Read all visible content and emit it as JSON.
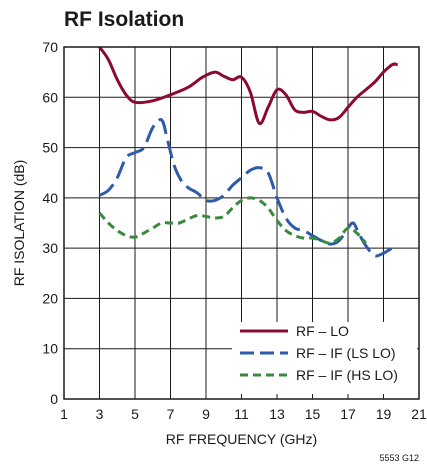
{
  "chart_data": {
    "type": "line",
    "title": "RF Isolation",
    "xlabel": "RF FREQUENCY (GHz)",
    "ylabel": "RF ISOLATION (dB)",
    "xlim": [
      1,
      21
    ],
    "ylim": [
      0,
      70
    ],
    "xticks": [
      1,
      3,
      5,
      7,
      9,
      11,
      13,
      15,
      17,
      19,
      21
    ],
    "yticks": [
      0,
      10,
      20,
      30,
      40,
      50,
      60,
      70
    ],
    "grid": true,
    "legend_position": "bottom-right",
    "series": [
      {
        "name": "RF – LO",
        "color": "#8b0b2f",
        "dash": "solid",
        "x": [
          3.0,
          3.5,
          4.0,
          4.5,
          5.0,
          6.0,
          7.0,
          8.0,
          8.8,
          9.5,
          10.0,
          10.5,
          11.0,
          11.5,
          12.0,
          12.5,
          13.0,
          13.5,
          14.0,
          14.5,
          15.0,
          15.5,
          16.0,
          16.5,
          17.0,
          17.5,
          18.0,
          18.5,
          19.0,
          19.5,
          19.8
        ],
        "y": [
          70.0,
          67.5,
          63.5,
          60.5,
          59.0,
          59.3,
          60.5,
          62.0,
          64.0,
          65.0,
          64.2,
          63.5,
          64.0,
          61.0,
          54.8,
          58.0,
          61.5,
          60.5,
          57.5,
          57.0,
          57.2,
          56.2,
          55.5,
          56.0,
          58.0,
          60.0,
          61.5,
          63.0,
          65.0,
          66.5,
          66.5
        ]
      },
      {
        "name": "RF – IF (LS LO)",
        "color": "#2e5aa8",
        "dash": "long-dash",
        "x": [
          3.0,
          3.5,
          4.0,
          4.5,
          5.0,
          5.5,
          6.0,
          6.5,
          6.8,
          7.2,
          7.6,
          8.0,
          8.5,
          9.0,
          9.5,
          10.0,
          10.5,
          11.0,
          11.5,
          12.0,
          12.5,
          13.0,
          13.5,
          14.0,
          14.5,
          15.0,
          15.5,
          16.0,
          16.5,
          17.0,
          17.3,
          17.6,
          18.0,
          18.5,
          19.0,
          19.5,
          19.8
        ],
        "y": [
          40.5,
          41.5,
          44.0,
          48.0,
          49.0,
          50.0,
          54.0,
          55.5,
          52.0,
          46.5,
          43.5,
          42.0,
          41.0,
          39.5,
          39.5,
          40.5,
          42.5,
          44.0,
          45.5,
          46.0,
          45.0,
          40.0,
          36.0,
          34.0,
          33.5,
          32.5,
          31.5,
          30.8,
          31.5,
          34.0,
          35.0,
          33.0,
          30.5,
          28.5,
          29.0,
          30.0,
          30.0
        ]
      },
      {
        "name": "RF – IF (HS LO)",
        "color": "#3a8a3e",
        "dash": "short-dash",
        "x": [
          3.0,
          3.5,
          4.0,
          4.5,
          5.0,
          5.5,
          6.0,
          6.5,
          7.0,
          7.5,
          8.0,
          8.5,
          9.0,
          9.5,
          10.0,
          10.5,
          11.0,
          11.5,
          12.0,
          12.5,
          13.0,
          13.5,
          14.0,
          14.5,
          15.0,
          15.5,
          16.0,
          16.5,
          17.0,
          17.5,
          18.0
        ],
        "y": [
          37.0,
          35.0,
          33.5,
          32.5,
          32.2,
          33.0,
          34.0,
          35.0,
          35.0,
          35.0,
          35.8,
          36.5,
          36.3,
          36.0,
          36.3,
          38.0,
          39.5,
          40.0,
          39.5,
          38.0,
          35.5,
          33.5,
          32.5,
          32.0,
          32.0,
          31.5,
          31.0,
          32.0,
          34.0,
          33.0,
          31.0
        ]
      }
    ],
    "figure_id": "5553 G12"
  }
}
